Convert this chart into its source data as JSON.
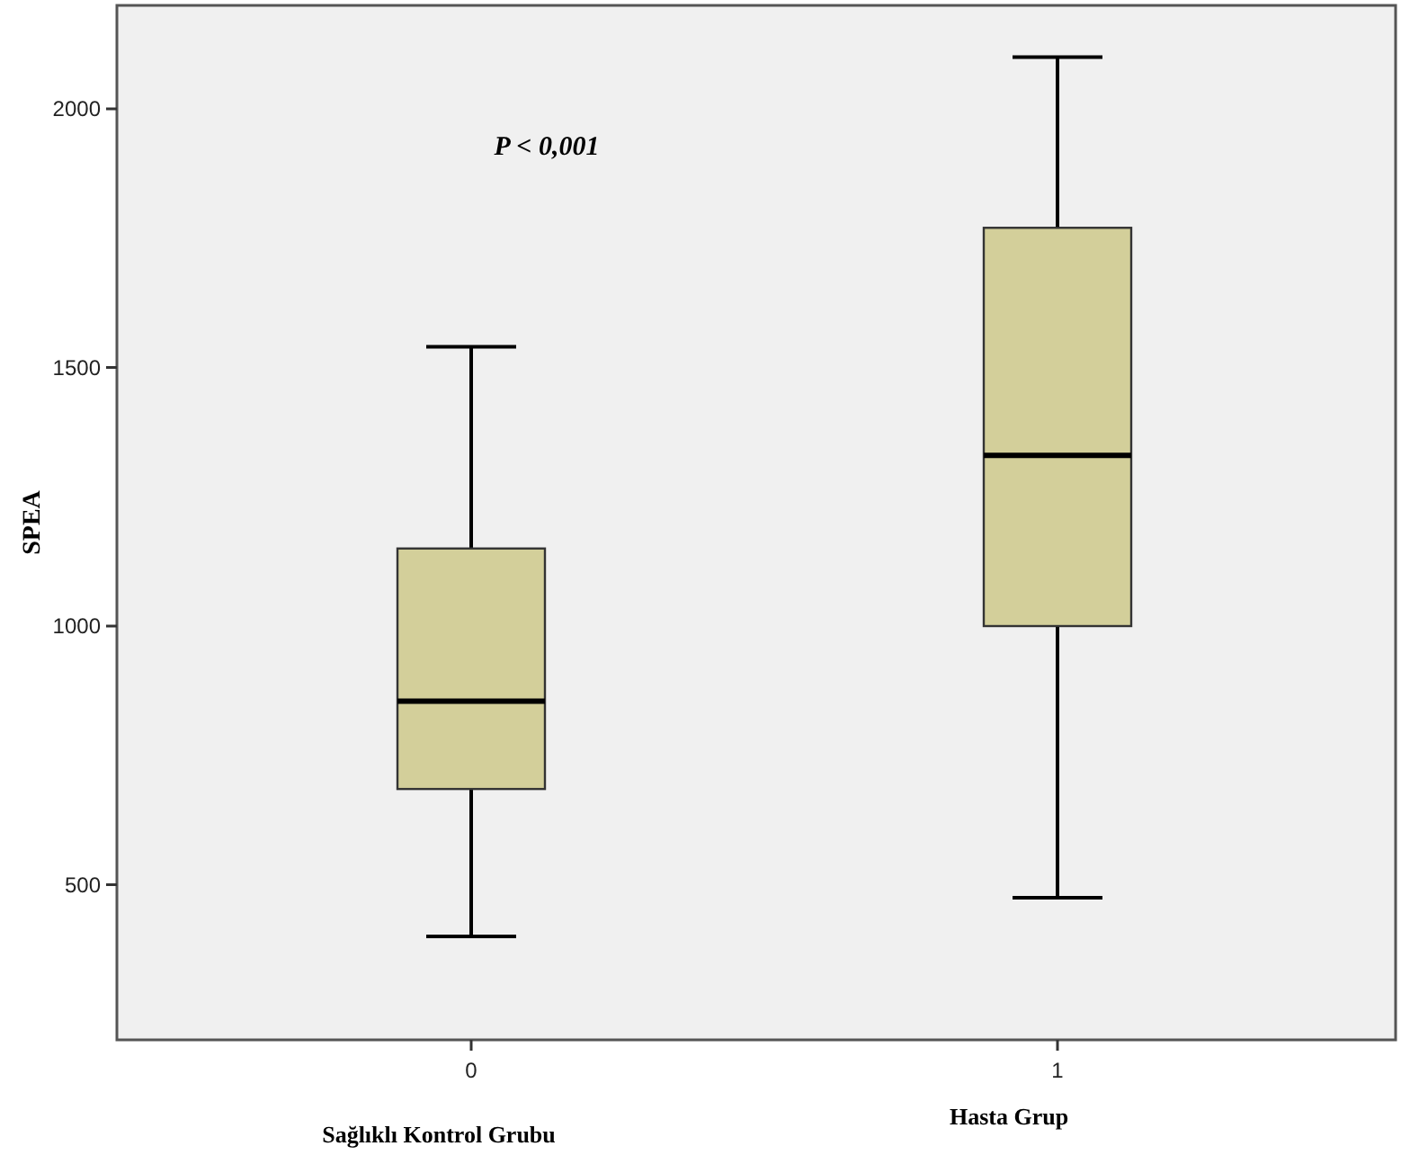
{
  "chart_data": {
    "type": "box",
    "ylabel": "SPEA",
    "categories": [
      "0",
      "1"
    ],
    "boxes": [
      {
        "low": 400,
        "q1": 685,
        "median": 855,
        "q3": 1150,
        "high": 1540
      },
      {
        "low": 475,
        "q1": 1000,
        "median": 1330,
        "q3": 1770,
        "high": 2100
      }
    ],
    "color": "#d3cf9a",
    "ylim": [
      200,
      2200
    ],
    "yticks": [
      500,
      1000,
      1500,
      2000
    ],
    "grid": false,
    "annotations": [
      "P < 0,001",
      "Sağlıklı Kontrol Grubu",
      "Hasta Grup"
    ]
  }
}
